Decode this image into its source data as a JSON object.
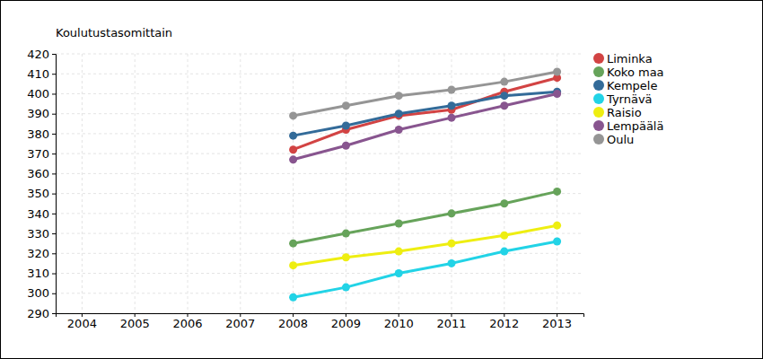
{
  "chart_data": {
    "type": "line",
    "title": "Koulutustasomittain",
    "categories": [
      "2004",
      "2005",
      "2006",
      "2007",
      "2008",
      "2009",
      "2010",
      "2011",
      "2012",
      "2013"
    ],
    "series": [
      {
        "name": "Liminka",
        "color": "#d24343",
        "values": [
          null,
          null,
          null,
          null,
          372,
          382,
          389,
          392,
          401,
          408
        ]
      },
      {
        "name": "Koko maa",
        "color": "#66a35a",
        "values": [
          null,
          null,
          null,
          null,
          325,
          330,
          335,
          340,
          345,
          351
        ]
      },
      {
        "name": "Kempele",
        "color": "#336b99",
        "values": [
          null,
          null,
          null,
          null,
          379,
          384,
          390,
          394,
          399,
          401
        ]
      },
      {
        "name": "Tyrnävä",
        "color": "#22d3e6",
        "values": [
          null,
          null,
          null,
          null,
          298,
          303,
          310,
          315,
          321,
          326
        ]
      },
      {
        "name": "Raisio",
        "color": "#eeee11",
        "values": [
          null,
          null,
          null,
          null,
          314,
          318,
          321,
          325,
          329,
          334
        ]
      },
      {
        "name": "Lempäälä",
        "color": "#88558f",
        "values": [
          null,
          null,
          null,
          null,
          367,
          374,
          382,
          388,
          394,
          400
        ]
      },
      {
        "name": "Oulu",
        "color": "#959595",
        "values": [
          null,
          null,
          null,
          null,
          389,
          394,
          399,
          402,
          406,
          411
        ]
      }
    ],
    "ylim": [
      290,
      420
    ],
    "yticks": [
      290,
      300,
      310,
      320,
      330,
      340,
      350,
      360,
      370,
      380,
      390,
      400,
      410,
      420
    ],
    "grid": true,
    "marker": "circle",
    "legend": "right"
  }
}
